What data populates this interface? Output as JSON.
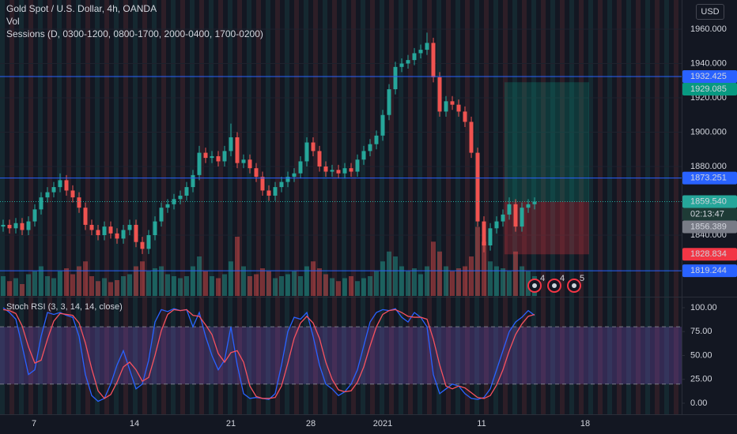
{
  "header": {
    "title": "Gold Spot / U.S. Dollar, 4h, OANDA",
    "vol_label": "Vol",
    "sessions_label": "Sessions (D, 0300-1200, 0800-1700, 2000-0400, 1700-0200)",
    "currency": "USD",
    "countdown": "02:13:47"
  },
  "event_markers": [
    4,
    4,
    5
  ],
  "x_axis_labels": [
    "7",
    "14",
    "21",
    "28",
    "2021",
    "11",
    "18"
  ],
  "chart_data": [
    {
      "type": "candlestick",
      "up_color": "#26a69a",
      "down_color": "#ef5350",
      "open": [
        1845,
        1846,
        1844,
        1847,
        1843,
        1848,
        1855,
        1862,
        1865,
        1868,
        1872,
        1866,
        1862,
        1856,
        1846,
        1843,
        1840,
        1845,
        1841,
        1838,
        1843,
        1846,
        1836,
        1832,
        1840,
        1848,
        1856,
        1858,
        1861,
        1863,
        1868,
        1875,
        1888,
        1885,
        1886,
        1883,
        1889,
        1897,
        1882,
        1884,
        1879,
        1874,
        1866,
        1863,
        1868,
        1871,
        1874,
        1876,
        1883,
        1894,
        1889,
        1880,
        1877,
        1878,
        1876,
        1879,
        1877,
        1884,
        1889,
        1893,
        1898,
        1910,
        1925,
        1938,
        1940,
        1942,
        1946,
        1948,
        1952,
        1932,
        1912,
        1918,
        1916,
        1912,
        1906,
        1888,
        1848,
        1834,
        1844,
        1848,
        1852,
        1858,
        1845,
        1856,
        1858
      ],
      "high": [
        1849,
        1849,
        1850,
        1850,
        1851,
        1858,
        1865,
        1868,
        1871,
        1876,
        1875,
        1869,
        1865,
        1859,
        1849,
        1846,
        1848,
        1848,
        1844,
        1846,
        1849,
        1849,
        1839,
        1843,
        1851,
        1859,
        1861,
        1864,
        1866,
        1871,
        1878,
        1892,
        1891,
        1889,
        1889,
        1892,
        1905,
        1900,
        1887,
        1887,
        1882,
        1877,
        1869,
        1871,
        1874,
        1877,
        1879,
        1886,
        1897,
        1897,
        1892,
        1883,
        1881,
        1881,
        1882,
        1882,
        1887,
        1892,
        1896,
        1901,
        1913,
        1928,
        1941,
        1943,
        1945,
        1949,
        1951,
        1958,
        1955,
        1935,
        1921,
        1921,
        1919,
        1915,
        1909,
        1891,
        1851,
        1847,
        1851,
        1855,
        1862,
        1861,
        1859,
        1861,
        1862
      ],
      "low": [
        1842,
        1841,
        1841,
        1840,
        1840,
        1845,
        1852,
        1859,
        1862,
        1865,
        1863,
        1859,
        1853,
        1843,
        1840,
        1837,
        1837,
        1838,
        1835,
        1835,
        1840,
        1833,
        1829,
        1829,
        1837,
        1845,
        1853,
        1855,
        1858,
        1860,
        1865,
        1872,
        1882,
        1882,
        1880,
        1880,
        1886,
        1879,
        1879,
        1876,
        1871,
        1863,
        1860,
        1860,
        1865,
        1868,
        1871,
        1873,
        1880,
        1886,
        1877,
        1874,
        1874,
        1873,
        1873,
        1874,
        1874,
        1881,
        1886,
        1890,
        1895,
        1907,
        1922,
        1935,
        1937,
        1939,
        1943,
        1945,
        1929,
        1909,
        1909,
        1913,
        1909,
        1903,
        1885,
        1845,
        1830,
        1831,
        1841,
        1845,
        1849,
        1842,
        1842,
        1853,
        1855
      ],
      "close": [
        1846,
        1844,
        1847,
        1843,
        1848,
        1855,
        1862,
        1865,
        1868,
        1872,
        1866,
        1862,
        1856,
        1846,
        1843,
        1840,
        1845,
        1841,
        1838,
        1843,
        1846,
        1836,
        1832,
        1840,
        1848,
        1856,
        1858,
        1861,
        1863,
        1868,
        1875,
        1888,
        1885,
        1886,
        1883,
        1889,
        1897,
        1882,
        1884,
        1879,
        1874,
        1866,
        1863,
        1868,
        1871,
        1874,
        1876,
        1883,
        1894,
        1889,
        1880,
        1877,
        1878,
        1876,
        1879,
        1877,
        1884,
        1889,
        1893,
        1898,
        1910,
        1925,
        1938,
        1940,
        1942,
        1946,
        1948,
        1952,
        1932,
        1912,
        1918,
        1916,
        1912,
        1906,
        1888,
        1848,
        1834,
        1844,
        1848,
        1852,
        1858,
        1845,
        1856,
        1858,
        1859.54
      ],
      "volume": [
        20,
        15,
        18,
        12,
        22,
        25,
        30,
        20,
        18,
        25,
        28,
        22,
        30,
        35,
        20,
        15,
        18,
        14,
        16,
        20,
        22,
        30,
        35,
        25,
        28,
        30,
        22,
        20,
        18,
        20,
        30,
        40,
        25,
        20,
        18,
        22,
        35,
        60,
        30,
        20,
        22,
        28,
        25,
        18,
        20,
        22,
        25,
        20,
        30,
        35,
        28,
        22,
        18,
        15,
        18,
        20,
        15,
        18,
        20,
        25,
        35,
        45,
        40,
        30,
        25,
        28,
        22,
        30,
        55,
        45,
        30,
        25,
        28,
        30,
        40,
        70,
        55,
        35,
        30,
        28,
        25,
        45,
        30,
        25,
        20
      ],
      "ylim": [
        1804.6,
        1977.0
      ],
      "yticks": [
        {
          "value": 1960,
          "label": "1960.000"
        },
        {
          "value": 1940,
          "label": "1940.000"
        },
        {
          "value": 1920,
          "label": "1920.000"
        },
        {
          "value": 1900,
          "label": "1900.000"
        },
        {
          "value": 1880,
          "label": "1880.000"
        },
        {
          "value": 1840,
          "label": "1840.000"
        }
      ],
      "levels": [
        {
          "value": 1932.425,
          "kind": "line",
          "color": "#2962ff"
        },
        {
          "value": 1929.085,
          "kind": "target",
          "color": "#089981"
        },
        {
          "value": 1873.251,
          "kind": "line",
          "color": "#2962ff"
        },
        {
          "value": 1859.54,
          "label": "1859.540",
          "kind": "last",
          "color": "#26a69a"
        },
        {
          "value": 1856.389,
          "kind": "marker",
          "color": "#787b86"
        },
        {
          "value": 1828.834,
          "kind": "stop",
          "color": "#f23645"
        },
        {
          "value": 1819.244,
          "kind": "line",
          "color": "#2962ff"
        }
      ]
    },
    {
      "type": "line",
      "title": "Stoch RSI (3, 3, 14, 14, close)",
      "series": [
        {
          "color": "#2962ff",
          "values": [
            100,
            95,
            88,
            60,
            30,
            35,
            70,
            95,
            93,
            95,
            92,
            90,
            70,
            30,
            8,
            2,
            5,
            20,
            40,
            55,
            35,
            15,
            20,
            45,
            85,
            98,
            96,
            99,
            97,
            98,
            80,
            95,
            70,
            50,
            35,
            45,
            80,
            40,
            10,
            5,
            6,
            5,
            4,
            10,
            40,
            75,
            90,
            88,
            95,
            70,
            40,
            20,
            15,
            8,
            12,
            20,
            35,
            60,
            85,
            95,
            98,
            97,
            99,
            90,
            85,
            95,
            90,
            80,
            30,
            10,
            15,
            20,
            18,
            10,
            5,
            4,
            6,
            15,
            35,
            55,
            75,
            85,
            90,
            97,
            92
          ]
        },
        {
          "color": "#f7525f",
          "values": [
            98,
            97,
            94,
            81,
            59,
            42,
            45,
            67,
            86,
            94,
            93,
            92,
            84,
            63,
            36,
            13,
            5,
            9,
            22,
            38,
            43,
            35,
            23,
            27,
            50,
            76,
            93,
            98,
            97,
            98,
            92,
            91,
            82,
            72,
            52,
            43,
            53,
            55,
            43,
            18,
            7,
            5,
            5,
            6,
            18,
            42,
            68,
            84,
            91,
            84,
            68,
            43,
            25,
            14,
            12,
            13,
            22,
            38,
            60,
            80,
            93,
            97,
            98,
            95,
            91,
            90,
            90,
            88,
            67,
            40,
            18,
            15,
            18,
            16,
            11,
            6,
            5,
            8,
            19,
            35,
            55,
            72,
            83,
            91,
            93
          ]
        }
      ],
      "bands": [
        20,
        80
      ],
      "band_color": "#7e57c2",
      "ylim": [
        -11.6,
        109.9
      ],
      "yticks": [
        {
          "value": 100,
          "label": "100.00"
        },
        {
          "value": 75,
          "label": "75.00"
        },
        {
          "value": 50,
          "label": "50.00"
        },
        {
          "value": 25,
          "label": "25.00"
        },
        {
          "value": 0,
          "label": "0.00"
        }
      ]
    }
  ]
}
